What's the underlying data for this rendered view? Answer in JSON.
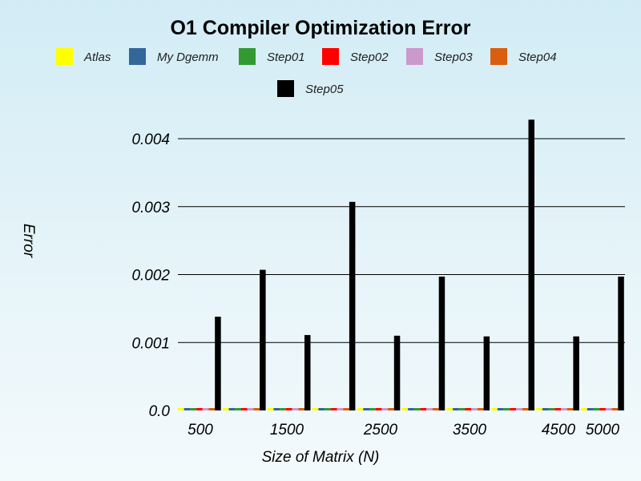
{
  "chart_data": {
    "type": "bar",
    "title": "O1 Compiler Optimization Error",
    "xlabel": "Size of Matrix (N)",
    "ylabel": "Error",
    "ylim": [
      0,
      0.0045
    ],
    "y_ticks": [
      "0.0",
      "0.001",
      "0.002",
      "0.003",
      "0.004"
    ],
    "y_tick_values": [
      0,
      0.001,
      0.002,
      0.003,
      0.004
    ],
    "grid": true,
    "legend_position": "top",
    "categories": [
      "500",
      "1000",
      "1500",
      "2000",
      "2500",
      "3000",
      "3500",
      "4000",
      "4500",
      "5000"
    ],
    "x_tick_labels": [
      "500",
      "1500",
      "2500",
      "3500",
      "4500",
      "5000"
    ],
    "x_tick_category_index": [
      0,
      2,
      4,
      6,
      8,
      9
    ],
    "series": [
      {
        "name": "Atlas",
        "color": "#ffff00",
        "values": [
          0,
          0,
          0,
          0,
          0,
          0,
          0,
          0,
          0,
          0
        ]
      },
      {
        "name": "My Dgemm",
        "color": "#336699",
        "values": [
          0,
          0,
          0,
          0,
          0,
          0,
          0,
          0,
          0,
          0
        ]
      },
      {
        "name": "Step01",
        "color": "#339933",
        "values": [
          0,
          0,
          0,
          0,
          0,
          0,
          0,
          0,
          0,
          0
        ]
      },
      {
        "name": "Step02",
        "color": "#ff0000",
        "values": [
          0,
          0,
          0,
          0,
          0,
          0,
          0,
          0,
          0,
          0
        ]
      },
      {
        "name": "Step03",
        "color": "#cc99cc",
        "values": [
          0,
          0,
          0,
          0,
          0,
          0,
          0,
          0,
          0,
          0
        ]
      },
      {
        "name": "Step04",
        "color": "#d95f0e",
        "values": [
          0,
          0,
          0,
          0,
          0,
          0,
          0,
          0,
          0,
          0
        ]
      },
      {
        "name": "Step05",
        "color": "#000000",
        "values": [
          0.00138,
          0.00207,
          0.00111,
          0.00307,
          0.0011,
          0.00197,
          0.00109,
          0.00428,
          0.00109,
          0.00197
        ]
      }
    ]
  }
}
